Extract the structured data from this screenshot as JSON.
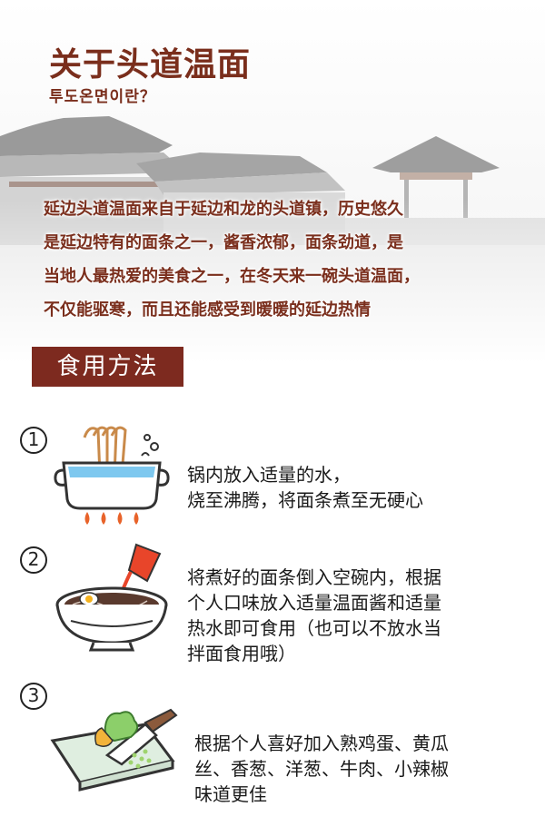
{
  "header": {
    "title": "关于头道温面",
    "subtitle": "투도온면이란？"
  },
  "intro": {
    "lines": [
      "延边头道温面来自于延边和龙的头道镇，历史悠久",
      "是延边特有的面条之一，酱香浓郁，面条劲道，是",
      "当地人最热爱的美食之一，在冬天来一碗头道温面，",
      "不仅能驱寒，而且还能感受到暖暖的延边热情"
    ]
  },
  "section": {
    "label": "食用方法"
  },
  "steps": [
    {
      "number": "1",
      "icon": "boiling-pot-icon",
      "lines": [
        "锅内放入适量的水，",
        "烧至沸腾，将面条煮至无硬心"
      ]
    },
    {
      "number": "2",
      "icon": "noodle-bowl-icon",
      "lines": [
        "将煮好的面条倒入空碗内，根据",
        "个人口味放入适量温面酱和适量",
        "热水即可食用（也可以不放水当",
        "拌面食用哦）"
      ]
    },
    {
      "number": "3",
      "icon": "cutting-board-icon",
      "lines": [
        "根据个人喜好加入熟鸡蛋、黄瓜",
        "丝、香葱、洋葱、牛肉、小辣椒",
        "味道更佳"
      ]
    }
  ],
  "colors": {
    "brand": "#7a2e1c",
    "badge": "#7d2a1f",
    "water": "#7ec8ef",
    "flame": "#e8632a",
    "sauce": "#e8452a"
  }
}
